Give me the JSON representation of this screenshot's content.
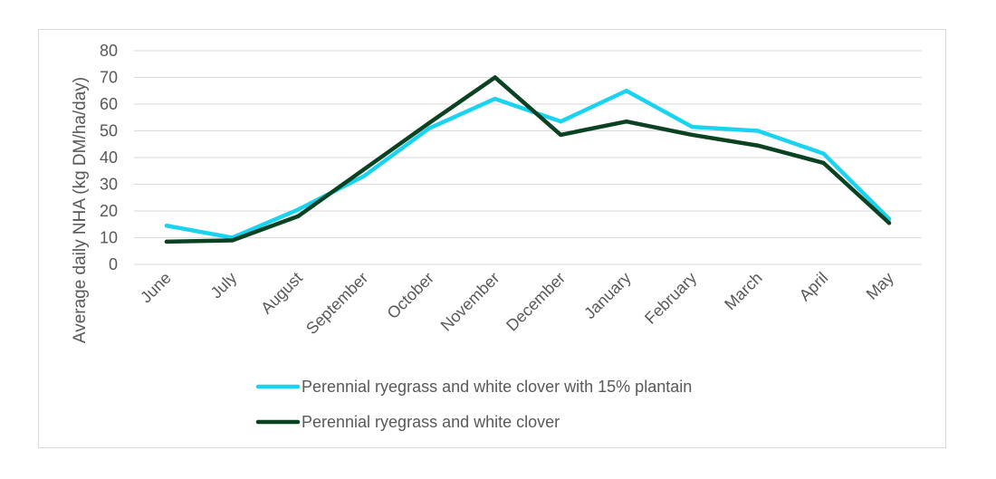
{
  "chart_data": {
    "type": "line",
    "title": "",
    "xlabel": "",
    "ylabel": "Average daily NHA (kg DM/ha/day)",
    "ylim": [
      0,
      80
    ],
    "yticks": [
      "0",
      "10",
      "20",
      "30",
      "40",
      "50",
      "60",
      "70",
      "80"
    ],
    "grid": true,
    "legend_position": "bottom",
    "categories": [
      "June",
      "July",
      "August",
      "September",
      "October",
      "November",
      "December",
      "January",
      "February",
      "March",
      "April",
      "May"
    ],
    "series": [
      {
        "name": "Perennial ryegrass and white clover with 15% plantain",
        "color": "#1ad3f0",
        "values": [
          14.5,
          10,
          20.5,
          33,
          51,
          62,
          53.5,
          65,
          51.5,
          50,
          41.5,
          17
        ]
      },
      {
        "name": "Perennial ryegrass and white clover",
        "color": "#0b4222",
        "values": [
          8.5,
          9,
          18,
          35.5,
          53,
          70,
          48.5,
          53.5,
          48.5,
          44.5,
          38,
          15.5
        ]
      }
    ],
    "gridline_color": "#d9d9d9",
    "text_color": "#595959"
  }
}
